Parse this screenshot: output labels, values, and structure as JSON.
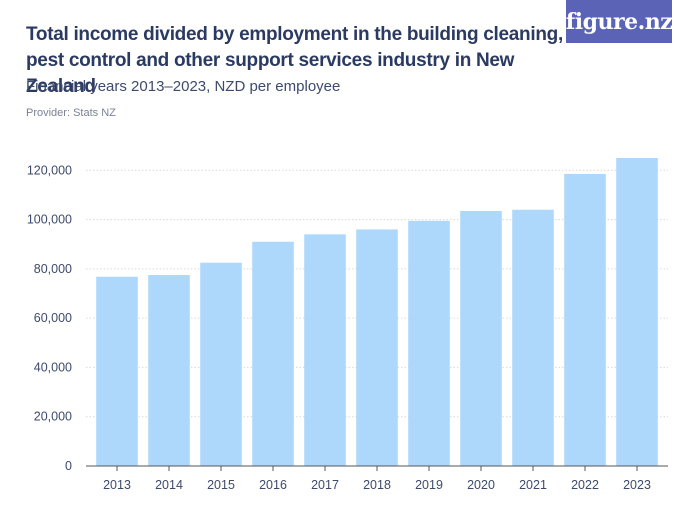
{
  "header": {
    "title": "Total income divided by employment in the building cleaning, pest control and other support services industry in New Zealand",
    "subtitle": "Financial years 2013–2023, NZD per employee",
    "provider": "Provider: Stats NZ",
    "logo_text": "figure.nz"
  },
  "colors": {
    "bar": "#aed8fb",
    "title": "#2b3a62",
    "grid": "#d9d9d9",
    "logo_bg": "#5b63b7"
  },
  "chart_data": {
    "type": "bar",
    "categories": [
      "2013",
      "2014",
      "2015",
      "2016",
      "2017",
      "2018",
      "2019",
      "2020",
      "2021",
      "2022",
      "2023"
    ],
    "values": [
      76800,
      77500,
      82500,
      91000,
      94000,
      96000,
      99500,
      103500,
      104000,
      118500,
      125000
    ],
    "title": "Total income divided by employment in the building cleaning, pest control and other support services industry in New Zealand",
    "xlabel": "",
    "ylabel": "",
    "ylim": [
      0,
      120000
    ],
    "yticks": [
      0,
      20000,
      40000,
      60000,
      80000,
      100000,
      120000
    ],
    "ytick_labels": [
      "0",
      "20,000",
      "40,000",
      "60,000",
      "80,000",
      "100,000",
      "120,000"
    ],
    "grid": true
  }
}
